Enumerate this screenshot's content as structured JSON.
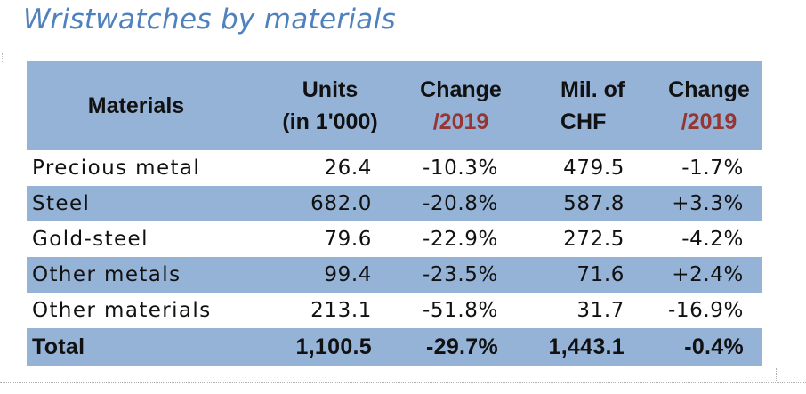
{
  "title": "Wristwatches by materials",
  "table": {
    "headers": [
      {
        "line1": "Materials",
        "line2": ""
      },
      {
        "line1": "Units",
        "line2": "(in 1'000)"
      },
      {
        "line1": "Change",
        "line2": "/2019"
      },
      {
        "line1": "Mil. of",
        "line2": "CHF"
      },
      {
        "line1": "Change",
        "line2": "/2019"
      }
    ],
    "rows": [
      {
        "material": "Precious metal",
        "units": "26.4",
        "units_change": "-10.3%",
        "chf": "479.5",
        "chf_change": "-1.7%"
      },
      {
        "material": "Steel",
        "units": "682.0",
        "units_change": "-20.8%",
        "chf": "587.8",
        "chf_change": "+3.3%"
      },
      {
        "material": "Gold-steel",
        "units": "79.6",
        "units_change": "-22.9%",
        "chf": "272.5",
        "chf_change": "-4.2%"
      },
      {
        "material": "Other metals",
        "units": "99.4",
        "units_change": "-23.5%",
        "chf": "71.6",
        "chf_change": "+2.4%"
      },
      {
        "material": "Other materials",
        "units": "213.1",
        "units_change": "-51.8%",
        "chf": "31.7",
        "chf_change": "-16.9%"
      }
    ],
    "total": {
      "material": "Total",
      "units": "1,100.5",
      "units_change": "-29.7%",
      "chf": "1,443.1",
      "chf_change": "-0.4%"
    }
  },
  "colors": {
    "title": "#4f81bd",
    "band": "#95b3d7",
    "header_sub": "#963634"
  }
}
